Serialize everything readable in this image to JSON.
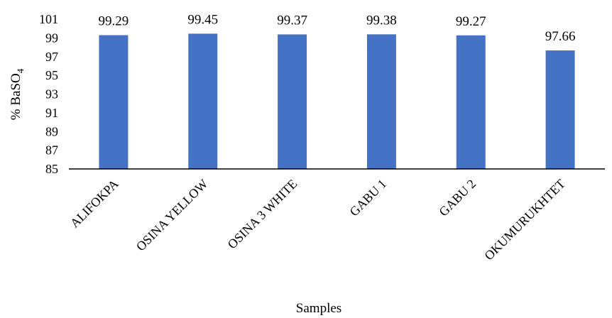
{
  "chart_data": {
    "type": "bar",
    "categories": [
      "ALIFOKPA",
      "OSINA YELLOW",
      "OSINA 3 WHITE",
      "GABU 1",
      "GABU 2",
      "OKUMURUKHTET"
    ],
    "values": [
      99.29,
      99.45,
      99.37,
      99.38,
      99.27,
      97.66
    ],
    "data_labels": [
      "99.29",
      "99.45",
      "99.37",
      "99.38",
      "99.27",
      "97.66"
    ],
    "title": "",
    "xlabel": "Samples",
    "ylabel_main": "% BaSO",
    "ylabel_sub": "4",
    "ylim": [
      85,
      101
    ],
    "yticks": [
      "85",
      "87",
      "89",
      "91",
      "93",
      "95",
      "97",
      "99",
      "101"
    ],
    "grid": false,
    "legend": "none",
    "bar_color": "#4472C4"
  }
}
